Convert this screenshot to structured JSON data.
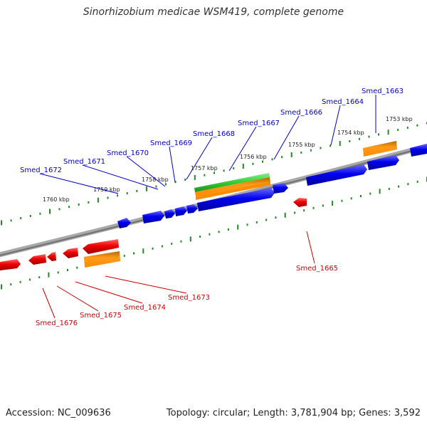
{
  "title": "Sinorhizobium medicae WSM419, complete genome",
  "footer": {
    "accession": "Accession: NC_009636",
    "summary": "Topology: circular; Length: 3,781,904 bp; Genes: 3,592"
  },
  "colors": {
    "forward_gene": "#0000ee",
    "reverse_gene": "#ee0000",
    "rrna": "#ff8c00",
    "trna": "#33cc33",
    "backbone": "#888888",
    "ticks": "#228b22"
  },
  "scale_labels": [
    "1753 kbp",
    "1754 kbp",
    "1755 kbp",
    "1756 kbp",
    "1757 kbp",
    "1758 kbp",
    "1759 kbp",
    "1760 kbp"
  ],
  "gene_labels_top": [
    "Smed_1663",
    "Smed_1664",
    "Smed_1666",
    "Smed_1667",
    "Smed_1668",
    "Smed_1669",
    "Smed_1670",
    "Smed_1671",
    "Smed_1672"
  ],
  "gene_labels_bottom": [
    "Smed_1665",
    "Smed_1673",
    "Smed_1674",
    "Smed_1675",
    "Smed_1676"
  ]
}
